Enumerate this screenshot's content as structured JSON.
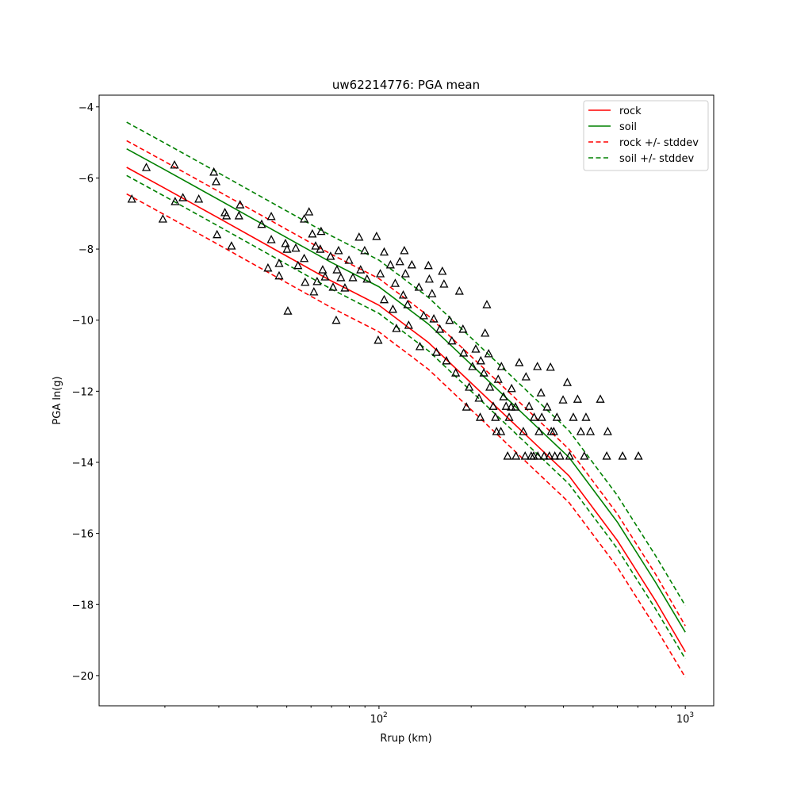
{
  "chart_data": {
    "type": "scatter",
    "title": "uw62214776: PGA mean",
    "xlabel": "Rrup (km)",
    "ylabel": "PGA ln(g)",
    "xscale": "log",
    "xlim": [
      12.2,
      1238
    ],
    "ylim": [
      -20.85,
      -3.67
    ],
    "x_major_ticks": [
      {
        "value": 100,
        "label": "10",
        "exp": "2"
      },
      {
        "value": 1000,
        "label": "10",
        "exp": "3"
      }
    ],
    "x_minor_ticks": [
      20,
      30,
      40,
      50,
      60,
      70,
      80,
      90,
      200,
      300,
      400,
      500,
      600,
      700,
      800,
      900
    ],
    "y_ticks": [
      -4,
      -6,
      -8,
      -10,
      -12,
      -14,
      -16,
      -18,
      -20
    ],
    "y_tick_labels": [
      "−4",
      "−6",
      "−8",
      "−10",
      "−12",
      "−14",
      "−16",
      "−18",
      "−20"
    ],
    "grid": false,
    "legend_placement": "top-right",
    "legend": [
      {
        "label": "rock",
        "color": "#ff0000",
        "dash": false
      },
      {
        "label": "soil",
        "color": "#008000",
        "dash": false
      },
      {
        "label": "rock +/- stddev",
        "color": "#ff0000",
        "dash": true
      },
      {
        "label": "soil +/- stddev",
        "color": "#008000",
        "dash": true
      }
    ],
    "curve_x": [
      15,
      20,
      30,
      50,
      70,
      100,
      145,
      200,
      300,
      417,
      600,
      800,
      1000
    ],
    "series": [
      {
        "name": "rock",
        "color": "#ff0000",
        "dash": false,
        "values": [
          -5.7,
          -6.29,
          -7.13,
          -8.2,
          -8.9,
          -9.58,
          -10.63,
          -11.77,
          -13.21,
          -14.38,
          -16.2,
          -17.9,
          -19.33
        ]
      },
      {
        "name": "soil",
        "color": "#008000",
        "dash": false,
        "values": [
          -5.18,
          -5.77,
          -6.61,
          -7.68,
          -8.38,
          -9.06,
          -10.11,
          -11.25,
          -12.69,
          -13.86,
          -15.68,
          -17.38,
          -18.78
        ]
      },
      {
        "name": "rock + stddev",
        "color": "#ff0000",
        "dash": true,
        "values": [
          -4.95,
          -5.54,
          -6.38,
          -7.45,
          -8.15,
          -8.83,
          -9.88,
          -11.02,
          -12.46,
          -13.63,
          -15.45,
          -17.15,
          -18.6
        ]
      },
      {
        "name": "rock - stddev",
        "color": "#ff0000",
        "dash": true,
        "values": [
          -6.45,
          -7.04,
          -7.88,
          -8.95,
          -9.65,
          -10.33,
          -11.38,
          -12.52,
          -13.96,
          -15.13,
          -16.95,
          -18.65,
          -20.05
        ]
      },
      {
        "name": "soil + stddev",
        "color": "#008000",
        "dash": true,
        "values": [
          -4.43,
          -5.02,
          -5.86,
          -6.93,
          -7.63,
          -8.31,
          -9.36,
          -10.5,
          -11.94,
          -13.11,
          -14.93,
          -16.63,
          -18.03
        ]
      },
      {
        "name": "soil - stddev",
        "color": "#008000",
        "dash": true,
        "values": [
          -5.93,
          -6.52,
          -7.36,
          -8.43,
          -9.13,
          -9.81,
          -10.86,
          -12.0,
          -13.44,
          -14.61,
          -16.43,
          -18.13,
          -19.53
        ]
      }
    ],
    "observations": [
      [
        15.6,
        -6.59
      ],
      [
        17.4,
        -5.7
      ],
      [
        19.7,
        -7.15
      ],
      [
        21.5,
        -5.63
      ],
      [
        21.6,
        -6.66
      ],
      [
        22.9,
        -6.55
      ],
      [
        25.8,
        -6.59
      ],
      [
        28.9,
        -5.83
      ],
      [
        29.4,
        -6.1
      ],
      [
        29.6,
        -7.59
      ],
      [
        31.4,
        -6.97
      ],
      [
        31.8,
        -7.06
      ],
      [
        33.0,
        -7.91
      ],
      [
        34.9,
        -7.06
      ],
      [
        35.2,
        -6.75
      ],
      [
        41.4,
        -7.3
      ],
      [
        43.4,
        -8.53
      ],
      [
        44.5,
        -7.73
      ],
      [
        44.5,
        -7.08
      ],
      [
        47.2,
        -8.75
      ],
      [
        47.2,
        -8.4
      ],
      [
        49.5,
        -7.84
      ],
      [
        50.1,
        -8.0
      ],
      [
        50.4,
        -9.74
      ],
      [
        53.5,
        -7.97
      ],
      [
        54.4,
        -8.46
      ],
      [
        57.0,
        -7.15
      ],
      [
        57.4,
        -8.93
      ],
      [
        57.0,
        -8.26
      ],
      [
        59.1,
        -6.95
      ],
      [
        60.6,
        -7.57
      ],
      [
        61.3,
        -9.2
      ],
      [
        62.1,
        -7.91
      ],
      [
        62.8,
        -8.91
      ],
      [
        64.7,
        -7.5
      ],
      [
        64.3,
        -8.0
      ],
      [
        65.5,
        -8.58
      ],
      [
        66.7,
        -8.78
      ],
      [
        69.5,
        -8.2
      ],
      [
        70.8,
        -9.07
      ],
      [
        72.5,
        -10.0
      ],
      [
        72.9,
        -8.58
      ],
      [
        73.8,
        -8.04
      ],
      [
        75.1,
        -8.8
      ],
      [
        77.4,
        -9.09
      ],
      [
        79.8,
        -8.31
      ],
      [
        82.2,
        -8.8
      ],
      [
        86.1,
        -7.66
      ],
      [
        87.1,
        -8.58
      ],
      [
        89.8,
        -8.04
      ],
      [
        91.4,
        -8.84
      ],
      [
        98.2,
        -7.64
      ],
      [
        99.4,
        -10.56
      ],
      [
        101,
        -8.69
      ],
      [
        104,
        -8.08
      ],
      [
        104,
        -9.42
      ],
      [
        109,
        -8.44
      ],
      [
        111,
        -9.69
      ],
      [
        113,
        -8.96
      ],
      [
        114,
        -10.23
      ],
      [
        117,
        -8.35
      ],
      [
        120,
        -9.29
      ],
      [
        121,
        -8.04
      ],
      [
        122,
        -8.69
      ],
      [
        124,
        -9.56
      ],
      [
        125,
        -10.14
      ],
      [
        128,
        -8.44
      ],
      [
        135,
        -9.07
      ],
      [
        136,
        -10.74
      ],
      [
        140,
        -9.87
      ],
      [
        145,
        -8.46
      ],
      [
        146,
        -8.84
      ],
      [
        149,
        -9.25
      ],
      [
        151,
        -9.96
      ],
      [
        154,
        -10.9
      ],
      [
        158,
        -10.25
      ],
      [
        161,
        -8.62
      ],
      [
        163,
        -8.98
      ],
      [
        166,
        -11.14
      ],
      [
        170,
        -10.0
      ],
      [
        173,
        -10.58
      ],
      [
        178,
        -11.48
      ],
      [
        183,
        -9.18
      ],
      [
        188,
        -10.25
      ],
      [
        189,
        -10.92
      ],
      [
        193,
        -12.44
      ],
      [
        197,
        -11.88
      ],
      [
        202,
        -11.3
      ],
      [
        207,
        -10.81
      ],
      [
        212,
        -12.19
      ],
      [
        214,
        -12.73
      ],
      [
        220,
        -11.48
      ],
      [
        222,
        -10.36
      ],
      [
        225,
        -9.56
      ],
      [
        228,
        -10.94
      ],
      [
        230,
        -11.88
      ],
      [
        236,
        -12.42
      ],
      [
        242,
        -13.13
      ],
      [
        245,
        -11.66
      ],
      [
        251,
        -11.3
      ],
      [
        255,
        -12.15
      ],
      [
        263,
        -13.82
      ],
      [
        266,
        -12.73
      ],
      [
        271,
        -11.92
      ],
      [
        279,
        -12.44
      ],
      [
        287,
        -11.19
      ],
      [
        296,
        -13.13
      ],
      [
        302,
        -11.59
      ],
      [
        309,
        -12.42
      ],
      [
        314,
        -13.82
      ],
      [
        321,
        -12.73
      ],
      [
        329,
        -11.3
      ],
      [
        333,
        -13.13
      ],
      [
        338,
        -12.04
      ],
      [
        346,
        -13.82
      ],
      [
        354,
        -12.44
      ],
      [
        363,
        -11.32
      ],
      [
        372,
        -13.13
      ],
      [
        381,
        -12.73
      ],
      [
        390,
        -13.82
      ],
      [
        399,
        -12.24
      ],
      [
        412,
        -11.75
      ],
      [
        419,
        -13.82
      ],
      [
        431,
        -12.73
      ],
      [
        445,
        -12.22
      ],
      [
        456,
        -13.13
      ],
      [
        468,
        -13.82
      ],
      [
        474,
        -12.73
      ],
      [
        490,
        -13.13
      ],
      [
        528,
        -12.22
      ],
      [
        554,
        -13.82
      ],
      [
        558,
        -13.13
      ],
      [
        624,
        -13.82
      ],
      [
        703,
        -13.82
      ],
      [
        280,
        -13.82
      ],
      [
        300,
        -13.82
      ],
      [
        320,
        -13.82
      ],
      [
        330,
        -13.82
      ],
      [
        360,
        -13.82
      ],
      [
        375,
        -13.82
      ],
      [
        250,
        -13.13
      ],
      [
        270,
        -12.44
      ],
      [
        340,
        -12.73
      ],
      [
        365,
        -13.13
      ],
      [
        240,
        -12.73
      ],
      [
        215,
        -11.14
      ],
      [
        260,
        -12.42
      ]
    ]
  }
}
